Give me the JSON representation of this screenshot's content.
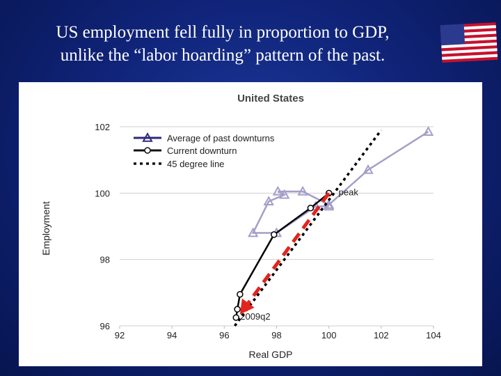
{
  "slide": {
    "title_line1": "US employment fell fully in proportion to GDP,",
    "title_line2": "unlike the “labor hoarding” pattern of the past."
  },
  "flag": {
    "icon": "us-flag-icon",
    "colors": {
      "red": "#c8102e",
      "white": "#ffffff",
      "blue": "#2b3a8f"
    }
  },
  "chart_data": {
    "type": "line",
    "title": "United States",
    "xlabel": "Real GDP",
    "ylabel": "Employment",
    "xlim": [
      92,
      104
    ],
    "ylim": [
      96,
      102
    ],
    "xticks": [
      92,
      94,
      96,
      98,
      100,
      102,
      104
    ],
    "yticks": [
      96,
      98,
      100,
      102
    ],
    "xtick_labels": [
      "92",
      "94",
      "96",
      "98",
      "100",
      "102",
      "104"
    ],
    "ytick_labels": [
      "96",
      "98",
      "100",
      "102"
    ],
    "grid": "horizontal",
    "legend": {
      "position": "top-left",
      "entries": [
        "Average of past downturns",
        "Current downturn",
        "45 degree line"
      ]
    },
    "series": [
      {
        "name": "Average of past downturns",
        "marker": "triangle",
        "color": "#a49ec8",
        "points": [
          [
            103.8,
            101.85
          ],
          [
            101.5,
            100.7
          ],
          [
            100,
            99.65
          ],
          [
            99.0,
            100.05
          ],
          [
            98.05,
            100.05
          ],
          [
            98.3,
            99.95
          ],
          [
            97.7,
            99.75
          ],
          [
            97.1,
            98.8
          ],
          [
            98.0,
            98.8
          ],
          [
            99.5,
            99.6
          ],
          [
            100.0,
            99.6
          ]
        ]
      },
      {
        "name": "Current downturn",
        "marker": "circle",
        "color": "#000000",
        "points": [
          [
            100,
            100
          ],
          [
            99.3,
            99.55
          ],
          [
            97.9,
            98.75
          ],
          [
            96.6,
            96.95
          ],
          [
            96.5,
            96.5
          ],
          [
            96.45,
            96.25
          ]
        ]
      },
      {
        "name": "45 degree line",
        "style": "dotted",
        "color": "#000000",
        "points": [
          [
            96.4,
            96.0
          ],
          [
            102.0,
            101.9
          ]
        ]
      }
    ],
    "annotations": [
      {
        "text": "peak",
        "x": 100,
        "y": 100
      },
      {
        "text": "2009q2",
        "x": 96.45,
        "y": 96.25
      }
    ],
    "arrow": {
      "color": "#e3231d",
      "style": "dashed",
      "from": [
        100,
        100
      ],
      "to": [
        96.6,
        96.35
      ]
    }
  }
}
